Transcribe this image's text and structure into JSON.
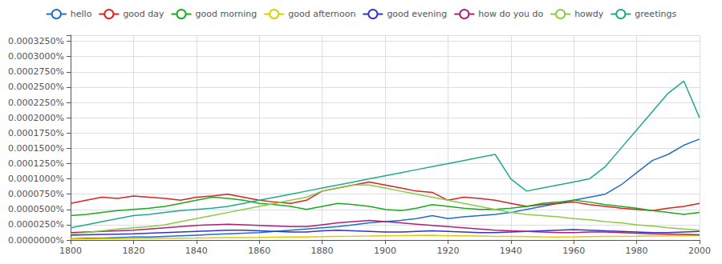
{
  "chart_data": {
    "type": "line",
    "x": [
      1800,
      1805,
      1810,
      1815,
      1820,
      1825,
      1830,
      1835,
      1840,
      1845,
      1850,
      1855,
      1860,
      1865,
      1870,
      1875,
      1880,
      1885,
      1890,
      1895,
      1900,
      1905,
      1910,
      1915,
      1920,
      1925,
      1930,
      1935,
      1940,
      1945,
      1950,
      1955,
      1960,
      1965,
      1970,
      1975,
      1980,
      1985,
      1990,
      1995,
      2000
    ],
    "series": [
      {
        "name": "hello",
        "color": "#1f6fca",
        "values": [
          2e-08,
          3e-08,
          3e-08,
          4e-08,
          5e-08,
          5e-08,
          6e-08,
          7e-08,
          8e-08,
          9e-08,
          1e-07,
          1.1e-07,
          1.2e-07,
          1.4e-07,
          1.6e-07,
          1.8e-07,
          2e-07,
          2.2e-07,
          2.5e-07,
          2.8e-07,
          3e-07,
          3.2e-07,
          3.5e-07,
          4e-07,
          3.5e-07,
          3.8e-07,
          4e-07,
          4.2e-07,
          4.5e-07,
          5e-07,
          5.5e-07,
          6e-07,
          6.5e-07,
          7e-07,
          7.5e-07,
          9e-07,
          1.1e-06,
          1.3e-06,
          1.4e-06,
          1.55e-06,
          1.65e-06
        ]
      },
      {
        "name": "good day",
        "color": "#dd2222",
        "values": [
          6e-07,
          6.5e-07,
          7e-07,
          6.8e-07,
          7.2e-07,
          7e-07,
          6.8e-07,
          6.5e-07,
          7e-07,
          7.2e-07,
          7.5e-07,
          7e-07,
          6.5e-07,
          6.2e-07,
          6e-07,
          6.5e-07,
          8e-07,
          8.5e-07,
          9e-07,
          9.5e-07,
          9e-07,
          8.5e-07,
          8e-07,
          7.8e-07,
          6.5e-07,
          7e-07,
          6.8e-07,
          6.5e-07,
          6e-07,
          5.5e-07,
          5.8e-07,
          6e-07,
          6.2e-07,
          5.8e-07,
          5.5e-07,
          5.2e-07,
          5e-07,
          4.8e-07,
          5.2e-07,
          5.5e-07,
          6e-07
        ]
      },
      {
        "name": "good morning",
        "color": "#1aaa1a",
        "values": [
          4e-07,
          4.2e-07,
          4.5e-07,
          4.8e-07,
          5e-07,
          5.2e-07,
          5.5e-07,
          6e-07,
          6.5e-07,
          7e-07,
          6.8e-07,
          6.5e-07,
          6e-07,
          5.8e-07,
          5.5e-07,
          5e-07,
          5.5e-07,
          6e-07,
          5.8e-07,
          5.5e-07,
          5e-07,
          4.8e-07,
          5.2e-07,
          5.8e-07,
          5.5e-07,
          5.2e-07,
          5e-07,
          5e-07,
          5.2e-07,
          5.5e-07,
          6e-07,
          6.2e-07,
          6.5e-07,
          6.2e-07,
          5.8e-07,
          5.5e-07,
          5.2e-07,
          4.8e-07,
          4.5e-07,
          4.2e-07,
          4.5e-07
        ]
      },
      {
        "name": "good afternoon",
        "color": "#ddcc00",
        "values": [
          1.5e-08,
          1.6e-08,
          1.8e-08,
          2e-08,
          2.2e-08,
          2.5e-08,
          2.8e-08,
          3e-08,
          3.2e-08,
          3.5e-08,
          3.8e-08,
          4e-08,
          4.2e-08,
          4.5e-08,
          4.8e-08,
          5e-08,
          5.5e-08,
          6e-08,
          6.2e-08,
          6.5e-08,
          7e-08,
          7.2e-08,
          7.5e-08,
          7.8e-08,
          7e-08,
          6.8e-08,
          6.5e-08,
          6e-08,
          5.8e-08,
          5.5e-08,
          5.2e-08,
          5e-08,
          5.2e-08,
          5.5e-08,
          5.8e-08,
          6e-08,
          6.2e-08,
          6.5e-08,
          6.8e-08,
          7e-08,
          7.2e-08
        ]
      },
      {
        "name": "good evening",
        "color": "#3333cc",
        "values": [
          8e-08,
          8.5e-08,
          9e-08,
          9.5e-08,
          1e-07,
          1.1e-07,
          1.2e-07,
          1.3e-07,
          1.4e-07,
          1.5e-07,
          1.6e-07,
          1.6e-07,
          1.5e-07,
          1.4e-07,
          1.3e-07,
          1.3e-07,
          1.5e-07,
          1.6e-07,
          1.5e-07,
          1.4e-07,
          1.3e-07,
          1.3e-07,
          1.4e-07,
          1.5e-07,
          1.4e-07,
          1.3e-07,
          1.2e-07,
          1.2e-07,
          1.3e-07,
          1.4e-07,
          1.5e-07,
          1.6e-07,
          1.7e-07,
          1.6e-07,
          1.5e-07,
          1.4e-07,
          1.3e-07,
          1.2e-07,
          1.2e-07,
          1.3e-07,
          1.4e-07
        ]
      },
      {
        "name": "how do you do",
        "color": "#aa2277",
        "values": [
          1.2e-07,
          1.3e-07,
          1.4e-07,
          1.5e-07,
          1.6e-07,
          1.8e-07,
          2e-07,
          2.2e-07,
          2.4e-07,
          2.5e-07,
          2.6e-07,
          2.5e-07,
          2.4e-07,
          2.3e-07,
          2.2e-07,
          2.2e-07,
          2.5e-07,
          2.8e-07,
          3e-07,
          3.2e-07,
          3e-07,
          2.8e-07,
          2.6e-07,
          2.4e-07,
          2.2e-07,
          2e-07,
          1.8e-07,
          1.6e-07,
          1.5e-07,
          1.4e-07,
          1.3e-07,
          1.2e-07,
          1.2e-07,
          1.3e-07,
          1.3e-07,
          1.2e-07,
          1.1e-07,
          1e-07,
          9.5e-08,
          9e-08,
          8.5e-08
        ]
      },
      {
        "name": "howdy",
        "color": "#88cc44",
        "values": [
          1e-07,
          1.2e-07,
          1.5e-07,
          1.8e-07,
          2e-07,
          2.2e-07,
          2.5e-07,
          3e-07,
          3.5e-07,
          4e-07,
          4.5e-07,
          5e-07,
          5.5e-07,
          6e-07,
          6.5e-07,
          7e-07,
          8e-07,
          8.5e-07,
          9e-07,
          9e-07,
          8.5e-07,
          8e-07,
          7.5e-07,
          7e-07,
          6.5e-07,
          6e-07,
          5.5e-07,
          5e-07,
          4.5e-07,
          4.2e-07,
          4e-07,
          3.8e-07,
          3.5e-07,
          3.3e-07,
          3e-07,
          2.8e-07,
          2.5e-07,
          2.3e-07,
          2e-07,
          1.8e-07,
          1.6e-07
        ]
      },
      {
        "name": "greetings",
        "color": "#22aa88",
        "values": [
          2e-07,
          2.5e-07,
          3e-07,
          3.5e-07,
          4e-07,
          4.2e-07,
          4.5e-07,
          4.8e-07,
          5e-07,
          5.2e-07,
          5.5e-07,
          6e-07,
          6.5e-07,
          7e-07,
          7.5e-07,
          8e-07,
          8.5e-07,
          9e-07,
          9.5e-07,
          1e-06,
          1.05e-06,
          1.1e-06,
          1.15e-06,
          1.2e-06,
          1.25e-06,
          1.3e-06,
          1.35e-06,
          1.4e-06,
          1e-06,
          8e-07,
          8.5e-07,
          9e-07,
          9.5e-07,
          1e-06,
          1.2e-06,
          1.5e-06,
          1.8e-06,
          2.1e-06,
          2.4e-06,
          2.6e-06,
          2e-06
        ]
      }
    ],
    "xlim": [
      1800,
      2000
    ],
    "xticks": [
      1800,
      1820,
      1840,
      1860,
      1880,
      1900,
      1920,
      1940,
      1960,
      1980,
      2000
    ],
    "ylim": [
      0.0,
      3.35e-06
    ],
    "yticks": [
      {
        "value": 0,
        "label": "0.0000000%"
      },
      {
        "value": 2.5e-07,
        "label": "0.0000250%"
      },
      {
        "value": 5e-07,
        "label": "0.0000500%"
      },
      {
        "value": 7.5e-07,
        "label": "0.0000750%"
      },
      {
        "value": 1e-06,
        "label": "0.0001000%"
      },
      {
        "value": 1.25e-06,
        "label": "0.0001250%"
      },
      {
        "value": 1.5e-06,
        "label": "0.0001500%"
      },
      {
        "value": 1.75e-06,
        "label": "0.0001750%"
      },
      {
        "value": 2e-06,
        "label": "0.0002000%"
      },
      {
        "value": 2.25e-06,
        "label": "0.0002250%"
      },
      {
        "value": 2.5e-06,
        "label": "0.0002500%"
      },
      {
        "value": 2.75e-06,
        "label": "0.0002750%"
      },
      {
        "value": 3e-06,
        "label": "0.0003000%"
      },
      {
        "value": 3.25e-06,
        "label": "0.0003250%"
      }
    ],
    "grid": true,
    "legend": "top"
  }
}
